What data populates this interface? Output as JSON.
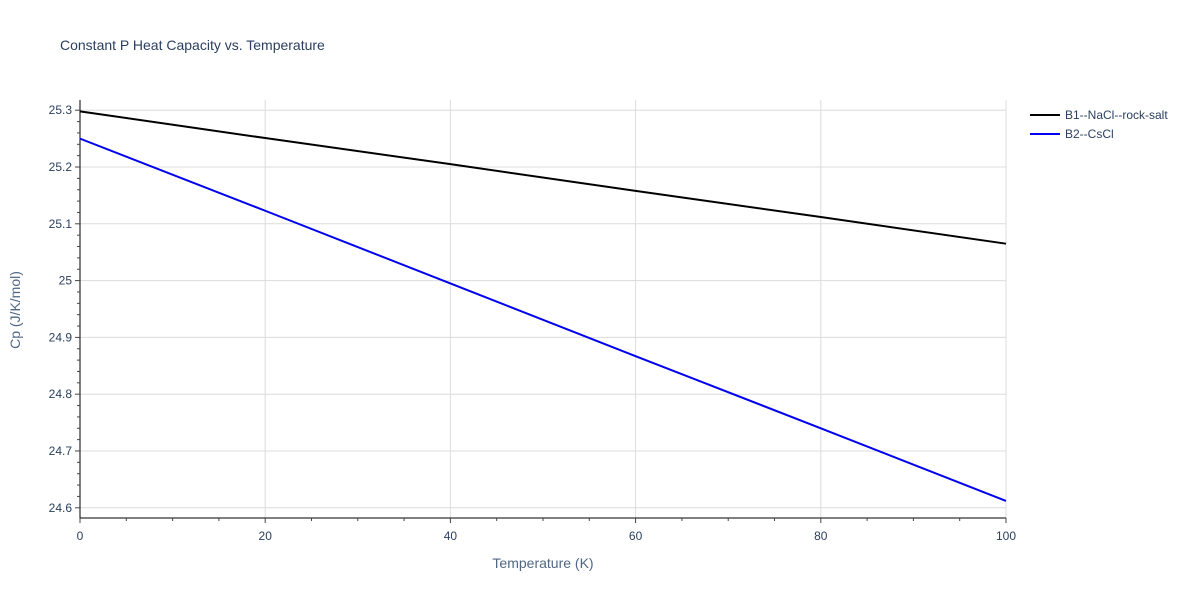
{
  "chart_data": {
    "type": "line",
    "title": "Constant P Heat Capacity vs. Temperature",
    "xlabel": "Temperature (K)",
    "ylabel": "Cp (J/K/mol)",
    "xlim": [
      0,
      100
    ],
    "ylim": [
      24.582,
      25.318
    ],
    "x_ticks": [
      0,
      20,
      40,
      60,
      80,
      100
    ],
    "x_tick_labels": [
      "0",
      "20",
      "40",
      "60",
      "80",
      "100"
    ],
    "y_ticks": [
      24.6,
      24.7,
      24.8,
      24.9,
      25.0,
      25.1,
      25.2,
      25.3
    ],
    "y_tick_labels": [
      "24.6",
      "24.7",
      "24.8",
      "24.9",
      "25",
      "25.1",
      "25.2",
      "25.3"
    ],
    "grid": true,
    "legend_position": "top-right",
    "series": [
      {
        "name": "B1--NaCl--rock-salt",
        "color": "#000000",
        "x": [
          0,
          20,
          40,
          60,
          80,
          100
        ],
        "y": [
          25.298,
          25.251,
          25.205,
          25.158,
          25.112,
          25.065
        ]
      },
      {
        "name": "B2--CsCl",
        "color": "#0000ee",
        "x": [
          0,
          20,
          40,
          60,
          80,
          100
        ],
        "y": [
          25.25,
          25.123,
          24.995,
          24.867,
          24.74,
          24.612
        ]
      }
    ]
  }
}
